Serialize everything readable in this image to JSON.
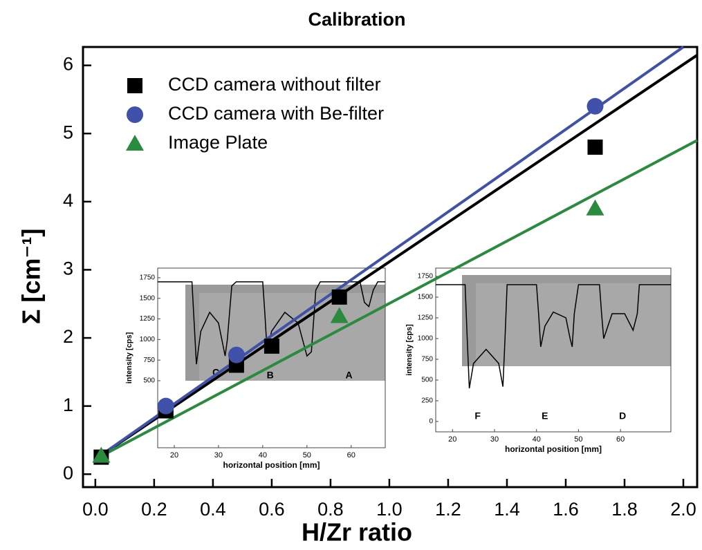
{
  "chart_data": [
    {
      "type": "scatter",
      "title": "Calibration",
      "xlabel": "H/Zr ratio",
      "ylabel": "Σ [cm⁻¹]",
      "xlim": [
        -0.042,
        2.047
      ],
      "ylim": [
        -0.19,
        6.27
      ],
      "xticks": [
        {
          "value": 0,
          "label": "0.0"
        },
        0.2,
        0.4,
        0.6,
        0.8,
        {
          "value": 1,
          "label": "1.0"
        },
        1.2,
        1.4,
        1.6,
        1.8,
        {
          "value": 2,
          "label": "2.0"
        }
      ],
      "yticks": [
        0,
        1,
        2,
        3,
        4,
        5,
        6
      ],
      "legend": "upper left",
      "series": [
        {
          "name": "CCD camera without filter",
          "color": "#000000",
          "marker": "square",
          "x": [
            0.02,
            0.24,
            0.48,
            0.6,
            0.83,
            1.7
          ],
          "values": [
            0.25,
            0.93,
            1.6,
            1.88,
            2.6,
            4.8
          ]
        },
        {
          "name": "CCD camera with Be-filter",
          "color": "#3f51a8",
          "marker": "circle",
          "x": [
            0.24,
            0.48,
            1.7
          ],
          "values": [
            1.0,
            1.75,
            5.4
          ]
        },
        {
          "name": "Image Plate",
          "color": "#2a8a3e",
          "marker": "triangle",
          "x": [
            0.02,
            0.83,
            1.7
          ],
          "values": [
            0.27,
            2.32,
            3.9
          ]
        }
      ],
      "fits": [
        {
          "color": "#000000",
          "x": [
            0,
            2.047
          ],
          "values": [
            0.22,
            6.15
          ]
        },
        {
          "color": "#3f51a8",
          "x": [
            0,
            2.0
          ],
          "values": [
            0.22,
            6.27
          ]
        },
        {
          "color": "#2a8a3e",
          "x": [
            0,
            2.047
          ],
          "values": [
            0.22,
            4.9
          ]
        }
      ]
    },
    {
      "type": "line",
      "xlabel": "horizontal position [mm]",
      "ylabel": "intensity [cps]",
      "color": "#000000",
      "xlim": [
        16.25,
        67.7
      ],
      "ylim": [
        -314,
        1867
      ],
      "xticks": [
        20,
        30,
        40,
        50,
        60
      ],
      "yticks": [
        500,
        750,
        1000,
        1250,
        1500,
        1750
      ],
      "x": [
        16.25,
        24,
        24.5,
        25,
        26,
        28,
        30,
        31.5,
        32,
        33,
        34,
        40,
        40.5,
        41,
        42,
        45,
        48,
        50,
        51,
        52,
        53,
        62,
        63,
        64,
        65,
        66,
        67.7
      ],
      "values": [
        1700,
        1700,
        1200,
        700,
        1100,
        1330,
        1200,
        800,
        1000,
        1650,
        1700,
        1700,
        1300,
        850,
        1100,
        1330,
        1200,
        800,
        850,
        1600,
        1700,
        1700,
        1450,
        1400,
        1600,
        1700,
        1700
      ],
      "annotations": [
        {
          "text": "C",
          "x": 29.4,
          "y": 592
        },
        {
          "text": "B",
          "x": 41.7,
          "y": 560
        },
        {
          "text": "A",
          "x": 59.5,
          "y": 560
        }
      ]
    },
    {
      "type": "line",
      "xlabel": "horizontal position [mm]",
      "ylabel": "intensity [cps]",
      "color": "#000000",
      "xlim": [
        16,
        72
      ],
      "ylim": [
        -125,
        1850
      ],
      "xticks": [
        20,
        30,
        40,
        50,
        60
      ],
      "yticks": [
        0,
        250,
        500,
        750,
        1000,
        1250,
        1500,
        1750
      ],
      "x": [
        16,
        23,
        23.5,
        24,
        25,
        28,
        31,
        32,
        32.5,
        33,
        40,
        40.5,
        41,
        42,
        44,
        47,
        48,
        48.5,
        49,
        50,
        55,
        55.5,
        56,
        58,
        61,
        63,
        64,
        64.5,
        72
      ],
      "values": [
        1650,
        1650,
        1000,
        400,
        700,
        870,
        700,
        420,
        1000,
        1650,
        1650,
        1300,
        900,
        1150,
        1320,
        1250,
        1000,
        900,
        1300,
        1650,
        1650,
        1300,
        1000,
        1300,
        1300,
        1100,
        1300,
        1650,
        1650
      ],
      "annotations": [
        {
          "text": "F",
          "x": 26,
          "y": 60
        },
        {
          "text": "E",
          "x": 42,
          "y": 60
        },
        {
          "text": "D",
          "x": 60.5,
          "y": 60
        }
      ]
    }
  ]
}
